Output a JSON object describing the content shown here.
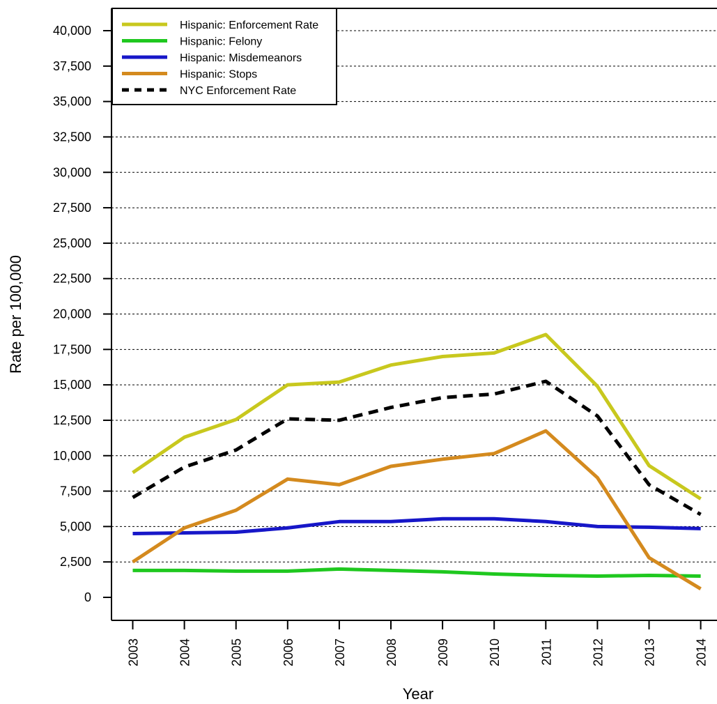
{
  "chart_data": {
    "type": "line",
    "title": "",
    "xlabel": "Year",
    "ylabel": "Rate per 100,000",
    "x": [
      2003,
      2004,
      2005,
      2006,
      2007,
      2008,
      2009,
      2010,
      2011,
      2012,
      2013,
      2014
    ],
    "x_tick_labels": [
      "2003",
      "2004",
      "2005",
      "2006",
      "2007",
      "2008",
      "2009",
      "2010",
      "2011",
      "2012",
      "2013",
      "2014"
    ],
    "ylim": [
      0,
      40000
    ],
    "y_ticks": [
      0,
      2500,
      5000,
      7500,
      10000,
      12500,
      15000,
      17500,
      20000,
      22500,
      25000,
      27500,
      30000,
      32500,
      35000,
      37500,
      40000
    ],
    "y_tick_labels": [
      "0",
      "2,500",
      "5,000",
      "7,500",
      "10,000",
      "12,500",
      "15,000",
      "17,500",
      "20,000",
      "22,500",
      "25,000",
      "27,500",
      "30,000",
      "32,500",
      "35,000",
      "37,500",
      "40,000"
    ],
    "grid": "horizontal dotted",
    "legend_position": "top-left",
    "series": [
      {
        "name": "Hispanic: Enforcement Rate",
        "color": "#c8c81e",
        "style": "solid",
        "values": [
          8800,
          11300,
          12550,
          15000,
          15200,
          16400,
          17000,
          17250,
          18550,
          14900,
          9300,
          6950
        ]
      },
      {
        "name": "Hispanic: Felony",
        "color": "#1fc81f",
        "style": "solid",
        "values": [
          1900,
          1900,
          1850,
          1850,
          2000,
          1900,
          1800,
          1650,
          1550,
          1500,
          1550,
          1500
        ]
      },
      {
        "name": "Hispanic: Misdemeanors",
        "color": "#1717c8",
        "style": "solid",
        "values": [
          4500,
          4550,
          4600,
          4900,
          5350,
          5350,
          5550,
          5550,
          5350,
          5000,
          4950,
          4850
        ]
      },
      {
        "name": "Hispanic: Stops",
        "color": "#d48a1e",
        "style": "solid",
        "values": [
          2500,
          4900,
          6150,
          8350,
          7950,
          9250,
          9750,
          10150,
          11750,
          8450,
          2800,
          600
        ]
      },
      {
        "name": "NYC Enforcement Rate",
        "color": "#000000",
        "style": "dashed",
        "values": [
          7050,
          9200,
          10400,
          12600,
          12500,
          13400,
          14100,
          14350,
          15250,
          12800,
          7950,
          5850
        ]
      }
    ]
  }
}
